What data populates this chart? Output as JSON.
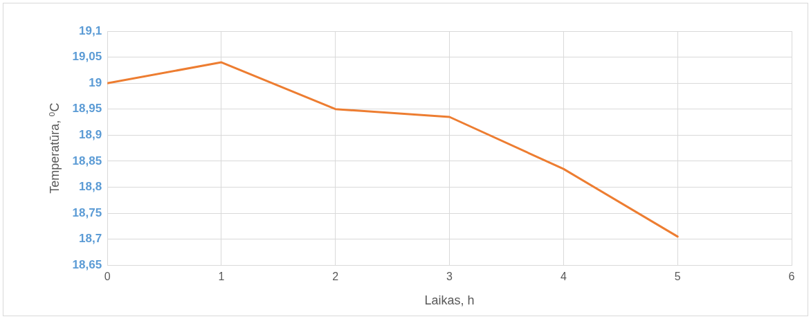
{
  "chart_data": {
    "type": "line",
    "xlabel": "Laikas, h",
    "ylabel": "Temperatūra, ⁰C",
    "x": [
      0,
      1,
      2,
      3,
      4,
      5
    ],
    "series": [
      {
        "color": "#ed7d31",
        "values": [
          19.0,
          19.04,
          18.95,
          18.935,
          18.835,
          18.705
        ]
      }
    ],
    "xlim": [
      0,
      6
    ],
    "xticks": [
      0,
      1,
      2,
      3,
      4,
      5,
      6
    ],
    "ylim": [
      18.65,
      19.1
    ],
    "yticks": [
      {
        "value": 18.65,
        "label": "18,65"
      },
      {
        "value": 18.7,
        "label": "18,7"
      },
      {
        "value": 18.75,
        "label": "18,75"
      },
      {
        "value": 18.8,
        "label": "18,8"
      },
      {
        "value": 18.85,
        "label": "18,85"
      },
      {
        "value": 18.9,
        "label": "18,9"
      },
      {
        "value": 18.95,
        "label": "18,95"
      },
      {
        "value": 19,
        "label": "19"
      },
      {
        "value": 19.05,
        "label": "19,05"
      },
      {
        "value": 19.1,
        "label": "19,1"
      }
    ],
    "grid": true,
    "legend": false,
    "marker": "none",
    "line_style": "solid"
  }
}
